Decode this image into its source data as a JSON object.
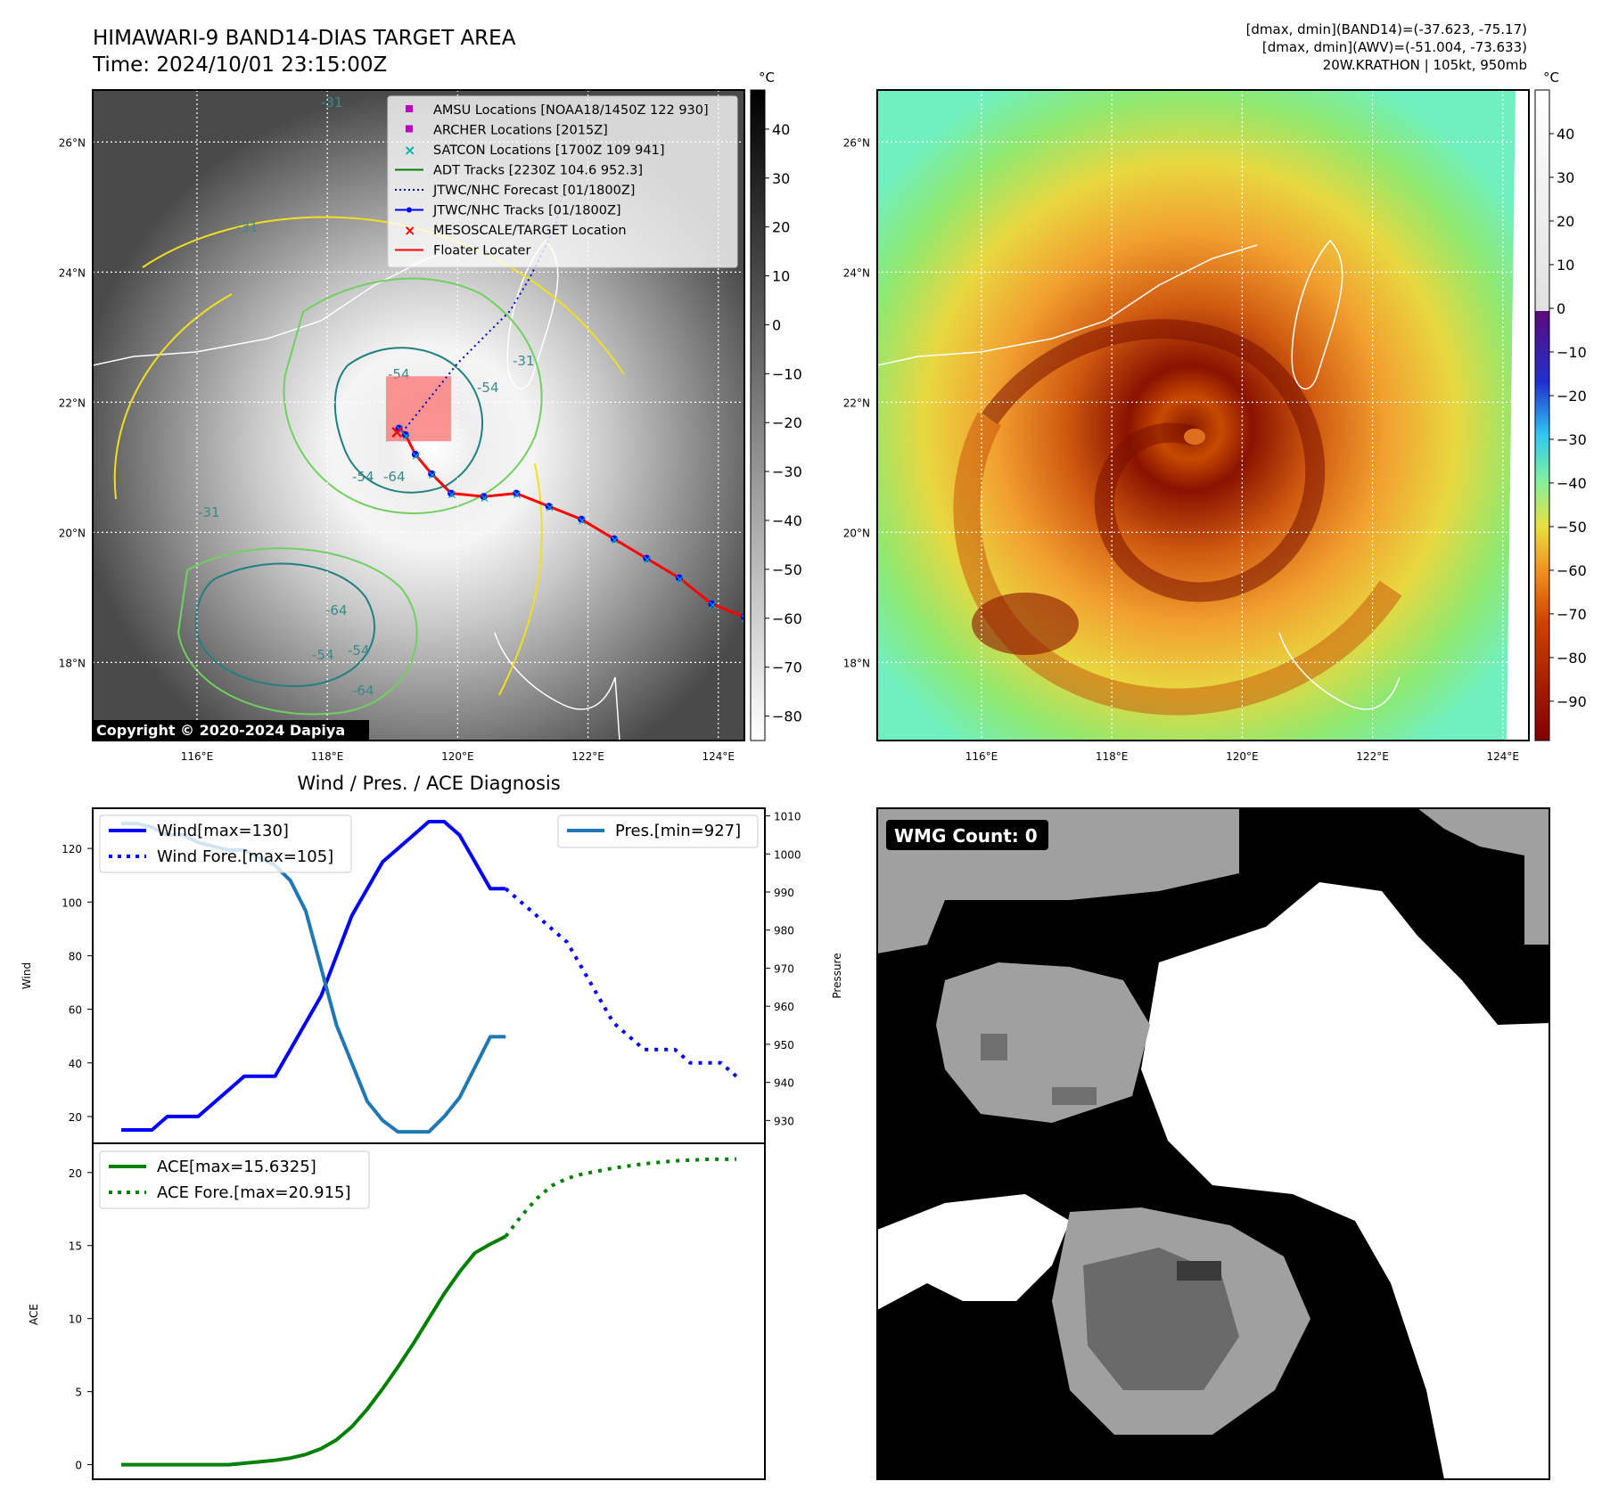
{
  "header": {
    "title": "HIMAWARI-9 BAND14-DIAS TARGET AREA",
    "time": "Time: 2024/10/01 23:15:00Z",
    "stats": [
      "[dmax, dmin](BAND14)=(-37.623, -75.17)",
      "[dmax, dmin](AWV)=(-51.004, -73.633)",
      "20W.KRATHON | 105kt, 950mb"
    ]
  },
  "map": {
    "lat_labels": [
      "26°N",
      "24°N",
      "22°N",
      "20°N",
      "18°N"
    ],
    "lat_values": [
      26,
      24,
      22,
      20,
      18
    ],
    "lon_labels": [
      "116°E",
      "118°E",
      "120°E",
      "122°E",
      "124°E"
    ],
    "lon_values": [
      116,
      118,
      120,
      122,
      124
    ],
    "lon_range": [
      114.4,
      124.4
    ],
    "lat_range": [
      16.8,
      26.8
    ],
    "copyright": "Copyright © 2020-2024 Dapiya",
    "contour_labels": [
      "-31",
      "-31",
      "-31",
      "-31",
      "-54",
      "-54",
      "-54",
      "-64",
      "-64",
      "-64",
      "-54",
      "-54"
    ],
    "legend": [
      {
        "label": "AMSU Locations [NOAA18/1450Z 122 930]",
        "symbol": "square",
        "color": "#c000c0"
      },
      {
        "label": "ARCHER Locations [2015Z]",
        "symbol": "square",
        "color": "#c000c0"
      },
      {
        "label": "SATCON Locations [1700Z 109 941]",
        "symbol": "x",
        "color": "#00b0b0"
      },
      {
        "label": "ADT Tracks [2230Z 104.6 952.3]",
        "symbol": "line",
        "color": "#008000"
      },
      {
        "label": "JTWC/NHC Forecast [01/1800Z]",
        "symbol": "dotted",
        "color": "#0000cc"
      },
      {
        "label": "JTWC/NHC Tracks [01/1800Z]",
        "symbol": "line-dot",
        "color": "#0000ff"
      },
      {
        "label": "MESOSCALE/TARGET Location",
        "symbol": "x",
        "color": "#ff0000"
      },
      {
        "label": "Floater Locater",
        "symbol": "line",
        "color": "#ff0000"
      }
    ],
    "track": {
      "lon": [
        124.4,
        123.9,
        123.4,
        122.9,
        122.4,
        121.9,
        121.4,
        120.9,
        120.4,
        119.9,
        119.6,
        119.35,
        119.2,
        119.1
      ],
      "lat": [
        18.7,
        18.9,
        19.3,
        19.6,
        19.9,
        20.2,
        20.4,
        20.6,
        20.55,
        20.6,
        20.9,
        21.2,
        21.5,
        21.6
      ]
    },
    "forecast": {
      "lon": [
        119.2,
        119.6,
        120.0,
        120.4,
        120.8,
        121.1,
        121.3,
        121.5,
        121.6
      ],
      "lat": [
        21.6,
        22.1,
        22.6,
        23.0,
        23.4,
        23.9,
        24.3,
        24.7,
        25.2
      ]
    },
    "target_box": {
      "lon": [
        118.9,
        119.9
      ],
      "lat": [
        21.4,
        22.4
      ]
    },
    "target_x": {
      "lon": 119.05,
      "lat": 21.55
    }
  },
  "colorbar_left": {
    "unit": "°C",
    "ticks": [
      40,
      30,
      20,
      10,
      0,
      -10,
      -20,
      -30,
      -40,
      -50,
      -60,
      -70,
      -80
    ],
    "range": [
      48,
      -85
    ]
  },
  "colorbar_right": {
    "unit": "°C",
    "ticks": [
      40,
      30,
      20,
      10,
      0,
      -10,
      -20,
      -30,
      -40,
      -50,
      -60,
      -70,
      -80,
      -90
    ],
    "range": [
      50,
      -99
    ]
  },
  "diagnosis": {
    "title": "Wind / Pres. / ACE Diagnosis",
    "wind_ylabel": "Wind",
    "pres_ylabel": "Pressure",
    "ace_ylabel": "ACE",
    "wind_ticks": [
      120,
      100,
      80,
      60,
      40,
      20
    ],
    "pres_ticks": [
      1010,
      1000,
      990,
      980,
      970,
      960,
      950,
      940,
      930
    ],
    "ace_ticks": [
      20,
      15,
      10,
      5,
      0
    ]
  },
  "chart_data": [
    {
      "type": "line",
      "title": "Wind / Pres. / ACE Diagnosis",
      "ylabel": "Wind",
      "ylim": [
        10,
        135
      ],
      "ylim_right": [
        924,
        1012
      ],
      "y2label": "Pressure",
      "x": [
        0,
        1,
        2,
        3,
        4,
        5,
        6,
        7,
        8,
        9,
        10,
        11,
        12,
        13,
        14,
        15,
        16,
        17,
        18,
        19,
        20,
        21,
        22,
        23,
        24,
        25,
        26,
        27,
        28,
        29,
        30,
        31,
        32,
        33,
        34,
        35,
        36,
        37,
        38,
        39,
        40
      ],
      "series": [
        {
          "name": "Wind[max=130]",
          "axis": "left",
          "color": "#0000ff",
          "style": "solid",
          "x": [
            0,
            1,
            2,
            3,
            4,
            5,
            6,
            7,
            8,
            9,
            10,
            11,
            12,
            13,
            14,
            15,
            16,
            17,
            18,
            19,
            20,
            21,
            22,
            23,
            24,
            25
          ],
          "values": [
            15,
            15,
            15,
            20,
            20,
            20,
            25,
            30,
            35,
            35,
            35,
            45,
            55,
            65,
            80,
            95,
            105,
            115,
            120,
            125,
            130,
            130,
            125,
            115,
            105,
            105
          ]
        },
        {
          "name": "Wind Fore.[max=105]",
          "axis": "left",
          "color": "#0000ff",
          "style": "dotted",
          "x": [
            25,
            26,
            27,
            28,
            29,
            30,
            31,
            32,
            33,
            34,
            35,
            36,
            37,
            38,
            39,
            40
          ],
          "values": [
            105,
            100,
            95,
            90,
            85,
            75,
            65,
            55,
            50,
            45,
            45,
            45,
            40,
            40,
            40,
            35
          ]
        },
        {
          "name": "Pres.[min=927]",
          "axis": "right",
          "color": "#1f77b4",
          "style": "solid",
          "x": [
            0,
            1,
            2,
            3,
            4,
            5,
            6,
            7,
            8,
            9,
            10,
            11,
            12,
            13,
            14,
            15,
            16,
            17,
            18,
            19,
            20,
            21,
            22,
            23,
            24,
            25
          ],
          "values": [
            1008,
            1008,
            1007,
            1005,
            1005,
            1003,
            1002,
            1001,
            1001,
            999,
            997,
            993,
            985,
            970,
            955,
            945,
            935,
            930,
            927,
            927,
            927,
            931,
            936,
            944,
            952,
            952
          ]
        }
      ]
    },
    {
      "type": "line",
      "ylabel": "ACE",
      "ylim": [
        -1,
        22
      ],
      "x": [
        0,
        1,
        2,
        3,
        4,
        5,
        6,
        7,
        8,
        9,
        10,
        11,
        12,
        13,
        14,
        15,
        16,
        17,
        18,
        19,
        20,
        21,
        22,
        23,
        24,
        25,
        26,
        27,
        28,
        29,
        30,
        31,
        32,
        33,
        34,
        35,
        36,
        37,
        38,
        39,
        40
      ],
      "series": [
        {
          "name": "ACE[max=15.6325]",
          "color": "#008000",
          "style": "solid",
          "x": [
            0,
            1,
            2,
            3,
            4,
            5,
            6,
            7,
            8,
            9,
            10,
            11,
            12,
            13,
            14,
            15,
            16,
            17,
            18,
            19,
            20,
            21,
            22,
            23,
            24,
            25
          ],
          "values": [
            0,
            0,
            0,
            0,
            0,
            0,
            0,
            0,
            0.1,
            0.2,
            0.3,
            0.45,
            0.7,
            1.1,
            1.7,
            2.6,
            3.8,
            5.2,
            6.7,
            8.3,
            10.0,
            11.7,
            13.2,
            14.5,
            15.1,
            15.63
          ]
        },
        {
          "name": "ACE Fore.[max=20.915]",
          "color": "#008000",
          "style": "dotted",
          "x": [
            25,
            26,
            27,
            28,
            29,
            30,
            31,
            32,
            33,
            34,
            35,
            36,
            37,
            38,
            39,
            40
          ],
          "values": [
            15.63,
            17.0,
            18.2,
            19.1,
            19.6,
            19.9,
            20.1,
            20.3,
            20.45,
            20.6,
            20.7,
            20.8,
            20.85,
            20.9,
            20.91,
            20.915
          ]
        }
      ]
    }
  ],
  "wmg": {
    "badge": "WMG Count: 0"
  }
}
